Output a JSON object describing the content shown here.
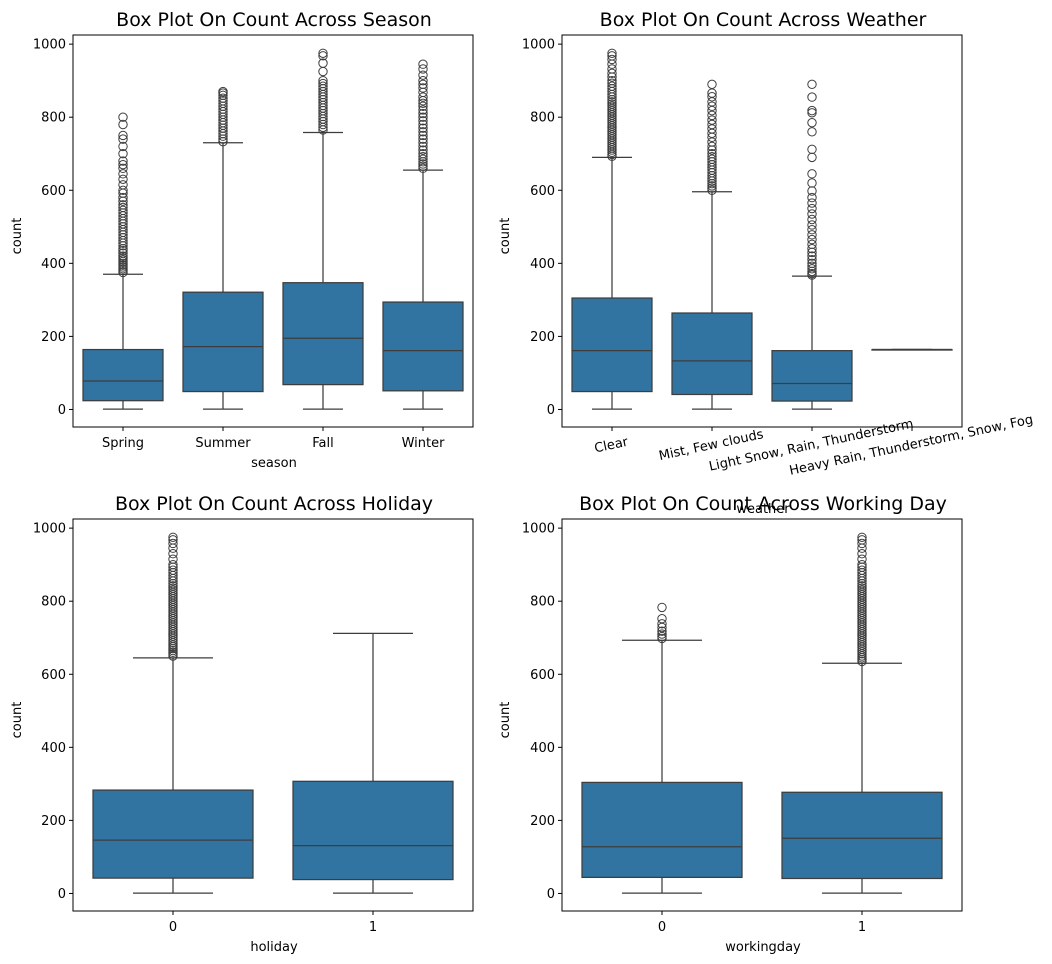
{
  "colors": {
    "box_fill": "#3274a1",
    "line": "#3d3d3d",
    "background": "#ffffff"
  },
  "chart_data": [
    {
      "type": "box",
      "title": "Box Plot On Count Across Season",
      "xlabel": "season",
      "ylabel": "count",
      "ylim": [
        -48,
        1025
      ],
      "yticks": [
        0,
        200,
        400,
        600,
        800,
        1000
      ],
      "xtick_rotation": 0,
      "categories": [
        "Spring",
        "Summer",
        "Fall",
        "Winter"
      ],
      "boxes": [
        {
          "category": "Spring",
          "whisker_low": 1,
          "q1": 24,
          "median": 78,
          "q3": 164,
          "whisker_high": 370,
          "fliers": [
            375,
            380,
            385,
            390,
            395,
            400,
            405,
            410,
            415,
            420,
            428,
            435,
            440,
            448,
            455,
            462,
            470,
            478,
            485,
            492,
            500,
            508,
            515,
            522,
            530,
            538,
            545,
            553,
            560,
            570,
            580,
            592,
            600,
            615,
            630,
            645,
            660,
            670,
            680,
            700,
            720,
            740,
            750,
            780,
            800
          ]
        },
        {
          "category": "Summer",
          "whisker_low": 1,
          "q1": 49,
          "median": 172,
          "q3": 321,
          "whisker_high": 730,
          "fliers": [
            733,
            740,
            748,
            755,
            762,
            770,
            778,
            785,
            792,
            800,
            808,
            815,
            822,
            830,
            838,
            845,
            852,
            860,
            866,
            870
          ]
        },
        {
          "category": "Fall",
          "whisker_low": 1,
          "q1": 68,
          "median": 195,
          "q3": 347,
          "whisker_high": 758,
          "fliers": [
            765,
            772,
            780,
            788,
            795,
            802,
            810,
            818,
            825,
            832,
            840,
            848,
            855,
            862,
            870,
            878,
            885,
            892,
            900,
            925,
            948,
            968,
            975
          ]
        },
        {
          "category": "Winter",
          "whisker_low": 1,
          "q1": 51,
          "median": 161,
          "q3": 294,
          "whisker_high": 655,
          "fliers": [
            660,
            666,
            672,
            678,
            685,
            692,
            700,
            710,
            720,
            730,
            740,
            750,
            760,
            770,
            780,
            790,
            800,
            810,
            820,
            830,
            838,
            845,
            855,
            868,
            880,
            890,
            900,
            915,
            932,
            945
          ]
        }
      ]
    },
    {
      "type": "box",
      "title": "Box Plot On Count Across Weather",
      "xlabel": "weather",
      "ylabel": "count",
      "ylim": [
        -48,
        1025
      ],
      "yticks": [
        0,
        200,
        400,
        600,
        800,
        1000
      ],
      "xtick_rotation": -12,
      "categories": [
        "Clear",
        "Mist, Few clouds",
        "Light Snow, Rain, Thunderstorm",
        "Heavy Rain, Thunderstorm, Snow, Fog"
      ],
      "boxes": [
        {
          "category": "Clear",
          "whisker_low": 1,
          "q1": 49,
          "median": 161,
          "q3": 305,
          "whisker_high": 690,
          "fliers": [
            693,
            698,
            704,
            710,
            716,
            722,
            728,
            734,
            740,
            746,
            752,
            758,
            764,
            770,
            776,
            782,
            788,
            794,
            800,
            806,
            812,
            818,
            824,
            830,
            836,
            842,
            848,
            855,
            862,
            870,
            878,
            885,
            893,
            900,
            910,
            920,
            932,
            945,
            958,
            968,
            975
          ]
        },
        {
          "category": "Mist, Few clouds",
          "whisker_low": 1,
          "q1": 41,
          "median": 133,
          "q3": 264,
          "whisker_high": 596,
          "fliers": [
            600,
            606,
            612,
            618,
            625,
            632,
            640,
            648,
            655,
            662,
            670,
            678,
            685,
            692,
            700,
            710,
            720,
            732,
            745,
            756,
            768,
            780,
            792,
            805,
            818,
            830,
            842,
            856,
            866,
            890
          ]
        },
        {
          "category": "Light Snow, Rain, Thunderstorm",
          "whisker_low": 1,
          "q1": 23,
          "median": 71,
          "q3": 161,
          "whisker_high": 365,
          "fliers": [
            368,
            372,
            378,
            385,
            392,
            400,
            410,
            420,
            430,
            440,
            452,
            465,
            478,
            492,
            505,
            520,
            535,
            550,
            565,
            580,
            598,
            620,
            645,
            690,
            712,
            760,
            785,
            812,
            818,
            855,
            890
          ]
        },
        {
          "category": "Heavy Rain, Thunderstorm, Snow, Fog",
          "whisker_low": 164,
          "q1": 164,
          "median": 164,
          "q3": 164,
          "whisker_high": 164,
          "fliers": []
        }
      ]
    },
    {
      "type": "box",
      "title": "Box Plot On Count Across Holiday",
      "xlabel": "holiday",
      "ylabel": "count",
      "ylim": [
        -48,
        1025
      ],
      "yticks": [
        0,
        200,
        400,
        600,
        800,
        1000
      ],
      "xtick_rotation": 0,
      "categories": [
        "0",
        "1"
      ],
      "boxes": [
        {
          "category": "0",
          "whisker_low": 1,
          "q1": 42,
          "median": 146,
          "q3": 283,
          "whisker_high": 645,
          "fliers": [
            650,
            655,
            660,
            665,
            670,
            675,
            680,
            686,
            692,
            698,
            704,
            710,
            716,
            722,
            728,
            734,
            740,
            746,
            752,
            758,
            764,
            770,
            776,
            782,
            788,
            794,
            800,
            806,
            812,
            818,
            824,
            830,
            836,
            842,
            848,
            855,
            862,
            870,
            878,
            885,
            893,
            900,
            915,
            930,
            945,
            958,
            968,
            975
          ]
        },
        {
          "category": "1",
          "whisker_low": 1,
          "q1": 38,
          "median": 131,
          "q3": 307,
          "whisker_high": 712,
          "fliers": []
        }
      ]
    },
    {
      "type": "box",
      "title": "Box Plot On Count Across Working Day",
      "xlabel": "workingday",
      "ylabel": "count",
      "ylim": [
        -48,
        1025
      ],
      "yticks": [
        0,
        200,
        400,
        600,
        800,
        1000
      ],
      "xtick_rotation": 0,
      "categories": [
        "0",
        "1"
      ],
      "boxes": [
        {
          "category": "0",
          "whisker_low": 1,
          "q1": 44,
          "median": 128,
          "q3": 304,
          "whisker_high": 693,
          "fliers": [
            698,
            703,
            710,
            718,
            728,
            738,
            752,
            783
          ]
        },
        {
          "category": "1",
          "whisker_low": 1,
          "q1": 41,
          "median": 151,
          "q3": 277,
          "whisker_high": 630,
          "fliers": [
            635,
            640,
            645,
            650,
            656,
            662,
            668,
            674,
            680,
            686,
            692,
            698,
            704,
            710,
            716,
            722,
            728,
            734,
            740,
            746,
            752,
            758,
            764,
            770,
            776,
            782,
            788,
            794,
            800,
            806,
            812,
            818,
            824,
            830,
            836,
            842,
            848,
            855,
            862,
            870,
            878,
            885,
            893,
            900,
            915,
            930,
            945,
            958,
            968,
            975
          ]
        }
      ]
    }
  ]
}
